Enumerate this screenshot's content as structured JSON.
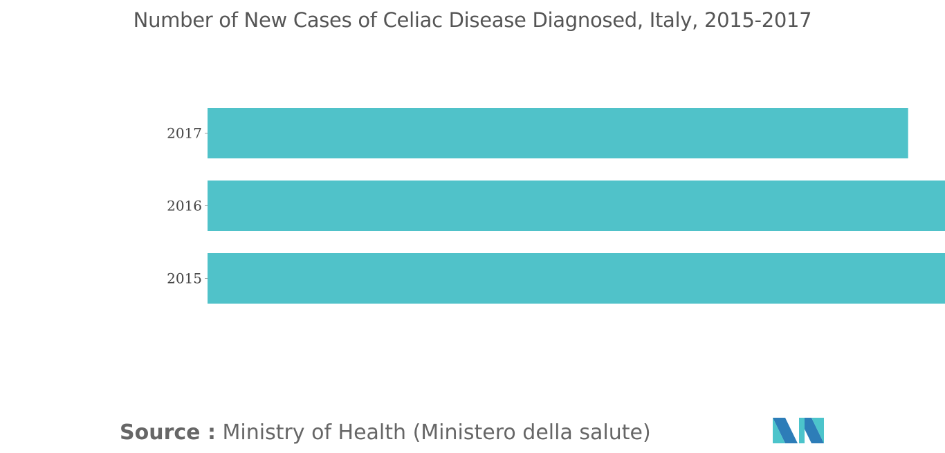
{
  "chart_data": {
    "type": "bar",
    "orientation": "horizontal",
    "title": "Number of New Cases of Celiac Disease Diagnosed, Italy, 2015-2017",
    "categories": [
      "2017",
      "2016",
      "2015"
    ],
    "values": [
      0.95,
      1.0,
      1.0
    ],
    "value_axis_shown": false,
    "grid": false,
    "bar_color": "#50C2C9"
  },
  "footer": {
    "source_label": "Source :",
    "source_text": "Ministry of Health (Ministero della salute)"
  },
  "logo": {
    "icon": "mordor-intelligence-logo-icon",
    "colors": [
      "#2D7DB8",
      "#4CC4CB"
    ]
  }
}
